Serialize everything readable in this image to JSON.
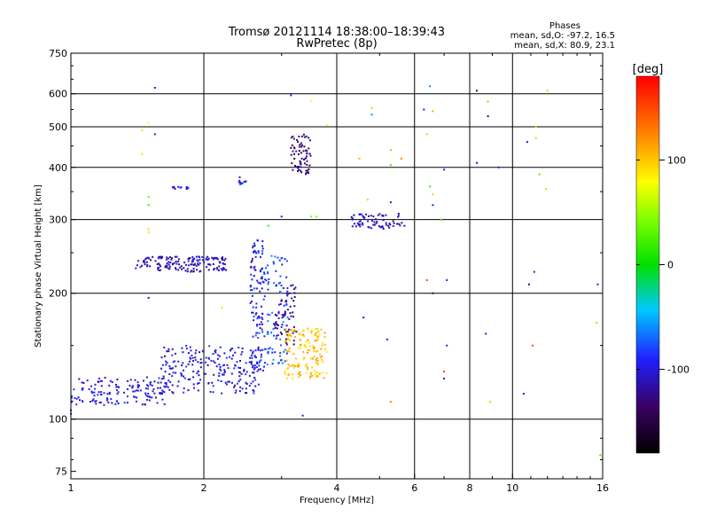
{
  "chart_data": {
    "type": "scatter",
    "title": "Tromsø 20121114 18:38:00–18:39:43",
    "subtitle": "RwPretec (8p)",
    "phase_box": {
      "heading": "Phases",
      "line1": "mean, sd,O: -97.2, 16.5",
      "line2": "mean, sd,X:  80.9, 23.1"
    },
    "xlabel": "Frequency [MHz]",
    "ylabel": "Stationary phase Virtual Height [km]",
    "x_scale": "log",
    "y_scale": "log",
    "xlim": [
      1,
      16
    ],
    "ylim": [
      72,
      750
    ],
    "x_ticks": [
      {
        "value": 1,
        "label": "1"
      },
      {
        "value": 2,
        "label": "2"
      },
      {
        "value": 4,
        "label": "4"
      },
      {
        "value": 6,
        "label": "6"
      },
      {
        "value": 8,
        "label": "8"
      },
      {
        "value": 10,
        "label": "10"
      },
      {
        "value": 16,
        "label": "16"
      }
    ],
    "y_ticks": [
      {
        "value": 75,
        "label": "75"
      },
      {
        "value": 100,
        "label": "100"
      },
      {
        "value": 200,
        "label": "200"
      },
      {
        "value": 300,
        "label": "300"
      },
      {
        "value": 400,
        "label": "400"
      },
      {
        "value": 500,
        "label": "500"
      },
      {
        "value": 600,
        "label": "600"
      },
      {
        "value": 750,
        "label": "750"
      }
    ],
    "x_grid": [
      2,
      4,
      6,
      8,
      10
    ],
    "y_grid": [
      100,
      200,
      300,
      400,
      500,
      600
    ],
    "grid": true,
    "colorbar": {
      "label": "[deg]",
      "min": -180,
      "max": 180,
      "ticks": [
        {
          "value": 100,
          "label": "100"
        },
        {
          "value": 0,
          "label": "0"
        },
        {
          "value": -100,
          "label": "-100"
        }
      ]
    },
    "clusters": [
      {
        "name": "",
        "f_range": [
          1.0,
          1.65
        ],
        "h_range": [
          108,
          126
        ],
        "phase": -100,
        "n": 150
      },
      {
        "name": "",
        "f_range": [
          1.6,
          2.7
        ],
        "h_range": [
          115,
          150
        ],
        "phase": -100,
        "n": 220
      },
      {
        "name": "",
        "f_range": [
          2.55,
          2.75
        ],
        "h_range": [
          130,
          270
        ],
        "phase": -95,
        "n": 120
      },
      {
        "name": "",
        "f_range": [
          2.75,
          3.1
        ],
        "h_range": [
          135,
          250
        ],
        "phase": -75,
        "n": 90
      },
      {
        "name": "",
        "f_range": [
          2.9,
          3.25
        ],
        "h_range": [
          150,
          210
        ],
        "phase": -120,
        "n": 60
      },
      {
        "name": "",
        "f_range": [
          3.05,
          3.8
        ],
        "h_range": [
          125,
          165
        ],
        "phase": 100,
        "n": 150
      },
      {
        "name": "",
        "f_range": [
          1.4,
          2.25
        ],
        "h_range": [
          225,
          245
        ],
        "phase": -110,
        "n": 160
      },
      {
        "name": "",
        "f_range": [
          3.15,
          3.5
        ],
        "h_range": [
          385,
          480
        ],
        "phase": -130,
        "n": 70
      },
      {
        "name": "",
        "f_range": [
          4.3,
          5.7
        ],
        "h_range": [
          285,
          310
        ],
        "phase": -110,
        "n": 70
      },
      {
        "name": "",
        "f_range": [
          2.4,
          2.5
        ],
        "h_range": [
          360,
          380
        ],
        "phase": -100,
        "n": 10
      },
      {
        "name": "",
        "f_range": [
          1.7,
          1.85
        ],
        "h_range": [
          355,
          360
        ],
        "phase": -100,
        "n": 12
      }
    ],
    "points": [
      {
        "f": 1.55,
        "h": 620,
        "phase": -100
      },
      {
        "f": 1.5,
        "h": 510,
        "phase": 80
      },
      {
        "f": 1.45,
        "h": 490,
        "phase": 90
      },
      {
        "f": 1.55,
        "h": 480,
        "phase": -110
      },
      {
        "f": 1.45,
        "h": 430,
        "phase": 90
      },
      {
        "f": 1.5,
        "h": 340,
        "phase": 40
      },
      {
        "f": 1.5,
        "h": 325,
        "phase": 20
      },
      {
        "f": 1.5,
        "h": 285,
        "phase": 90
      },
      {
        "f": 1.5,
        "h": 280,
        "phase": 90
      },
      {
        "f": 1.5,
        "h": 195,
        "phase": -110
      },
      {
        "f": 2.2,
        "h": 185,
        "phase": 90
      },
      {
        "f": 2.8,
        "h": 290,
        "phase": 20
      },
      {
        "f": 3.15,
        "h": 595,
        "phase": -100
      },
      {
        "f": 3.5,
        "h": 575,
        "phase": 80
      },
      {
        "f": 3.8,
        "h": 505,
        "phase": 80
      },
      {
        "f": 3.0,
        "h": 305,
        "phase": -100
      },
      {
        "f": 3.5,
        "h": 305,
        "phase": 40
      },
      {
        "f": 3.6,
        "h": 305,
        "phase": 40
      },
      {
        "f": 4.8,
        "h": 555,
        "phase": 100
      },
      {
        "f": 4.8,
        "h": 535,
        "phase": -60
      },
      {
        "f": 4.7,
        "h": 335,
        "phase": 100
      },
      {
        "f": 5.3,
        "h": 440,
        "phase": 30
      },
      {
        "f": 5.3,
        "h": 405,
        "phase": 20
      },
      {
        "f": 5.6,
        "h": 420,
        "phase": 130
      },
      {
        "f": 5.3,
        "h": 330,
        "phase": -100
      },
      {
        "f": 4.5,
        "h": 420,
        "phase": 110
      },
      {
        "f": 4.6,
        "h": 175,
        "phase": -100
      },
      {
        "f": 5.2,
        "h": 155,
        "phase": -100
      },
      {
        "f": 5.3,
        "h": 110,
        "phase": 130
      },
      {
        "f": 6.3,
        "h": 550,
        "phase": -100
      },
      {
        "f": 6.5,
        "h": 625,
        "phase": -60
      },
      {
        "f": 6.6,
        "h": 545,
        "phase": 110
      },
      {
        "f": 6.4,
        "h": 480,
        "phase": 100
      },
      {
        "f": 6.5,
        "h": 360,
        "phase": 20
      },
      {
        "f": 6.6,
        "h": 345,
        "phase": 100
      },
      {
        "f": 6.6,
        "h": 325,
        "phase": -100
      },
      {
        "f": 6.9,
        "h": 300,
        "phase": 20
      },
      {
        "f": 7.0,
        "h": 395,
        "phase": -100
      },
      {
        "f": 6.4,
        "h": 215,
        "phase": 150
      },
      {
        "f": 6.6,
        "h": 200,
        "phase": -130
      },
      {
        "f": 7.1,
        "h": 215,
        "phase": -100
      },
      {
        "f": 7.1,
        "h": 150,
        "phase": -100
      },
      {
        "f": 7.0,
        "h": 130,
        "phase": 150
      },
      {
        "f": 7.0,
        "h": 125,
        "phase": -100
      },
      {
        "f": 8.3,
        "h": 610,
        "phase": -130
      },
      {
        "f": 8.8,
        "h": 575,
        "phase": 110
      },
      {
        "f": 8.8,
        "h": 530,
        "phase": -120
      },
      {
        "f": 8.3,
        "h": 410,
        "phase": -100
      },
      {
        "f": 9.3,
        "h": 400,
        "phase": -100
      },
      {
        "f": 8.7,
        "h": 160,
        "phase": -100
      },
      {
        "f": 8.9,
        "h": 110,
        "phase": 100
      },
      {
        "f": 10.8,
        "h": 460,
        "phase": -100
      },
      {
        "f": 11.3,
        "h": 500,
        "phase": 100
      },
      {
        "f": 11.3,
        "h": 470,
        "phase": 100
      },
      {
        "f": 11.5,
        "h": 385,
        "phase": 30
      },
      {
        "f": 12.0,
        "h": 610,
        "phase": 100
      },
      {
        "f": 11.9,
        "h": 355,
        "phase": 100
      },
      {
        "f": 11.2,
        "h": 225,
        "phase": -100
      },
      {
        "f": 10.9,
        "h": 210,
        "phase": -130
      },
      {
        "f": 11.1,
        "h": 150,
        "phase": 150
      },
      {
        "f": 10.6,
        "h": 115,
        "phase": -100
      },
      {
        "f": 15.6,
        "h": 210,
        "phase": -100
      },
      {
        "f": 15.5,
        "h": 170,
        "phase": 100
      },
      {
        "f": 15.8,
        "h": 82,
        "phase": 20
      },
      {
        "f": 3.35,
        "h": 102,
        "phase": -100
      },
      {
        "f": 1.0,
        "h": 105,
        "phase": -100
      },
      {
        "f": 1.0,
        "h": 103,
        "phase": -100
      }
    ]
  }
}
